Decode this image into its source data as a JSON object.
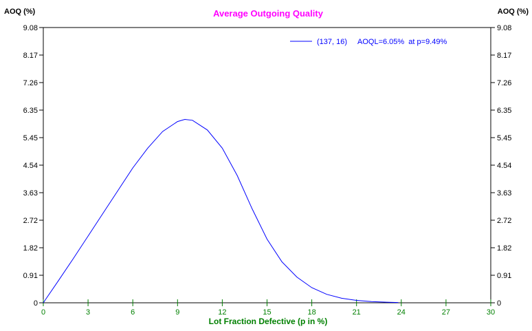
{
  "chart_data": {
    "type": "line",
    "title": "Average Outgoing Quality",
    "xlabel": "Lot Fraction Defective (p in %)",
    "ylabel_left": "AOQ (%)",
    "ylabel_right": "AOQ (%)",
    "xlim": [
      0,
      30
    ],
    "ylim": [
      0,
      9.08
    ],
    "xticks": [
      "0",
      "3",
      "6",
      "9",
      "12",
      "15",
      "18",
      "21",
      "24",
      "27",
      "30"
    ],
    "yticks": [
      "0",
      "0.91",
      "1.82",
      "2.72",
      "3.63",
      "4.54",
      "5.45",
      "6.35",
      "7.26",
      "8.17",
      "9.08"
    ],
    "legend": {
      "position": "top-right",
      "plan": "(137, 16)",
      "note": "AOQL=6.05%  at p=9.49%"
    },
    "colors": {
      "title": "#ff00ff",
      "line": "#0000ff",
      "axis_x": "#008000",
      "axis": "#000000"
    },
    "series": [
      {
        "name": "(137, 16)",
        "x": [
          0,
          1,
          2,
          3,
          4,
          5,
          6,
          7,
          8,
          9,
          9.49,
          10,
          11,
          12,
          13,
          14,
          15,
          16,
          17,
          18,
          19,
          20,
          21,
          22,
          23,
          23.8
        ],
        "y": [
          0,
          0.72,
          1.45,
          2.2,
          2.95,
          3.7,
          4.45,
          5.1,
          5.65,
          5.98,
          6.05,
          6.02,
          5.7,
          5.1,
          4.2,
          3.1,
          2.1,
          1.35,
          0.85,
          0.5,
          0.28,
          0.15,
          0.08,
          0.04,
          0.02,
          0.01
        ]
      }
    ]
  }
}
